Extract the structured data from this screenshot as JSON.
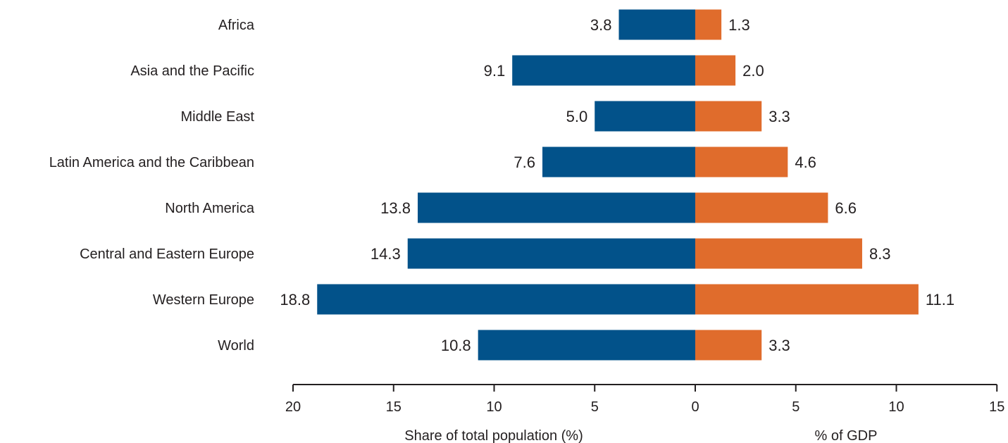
{
  "chart_data": {
    "type": "bar",
    "orientation": "horizontal",
    "layout": "butterfly",
    "categories": [
      "Africa",
      "Asia and the Pacific",
      "Middle East",
      "Latin America and the Caribbean",
      "North America",
      "Central and Eastern Europe",
      "Western Europe",
      "World"
    ],
    "series": [
      {
        "side": "left",
        "color": "#02528a",
        "values": [
          3.8,
          9.1,
          5.0,
          7.6,
          13.8,
          14.3,
          18.8,
          10.8
        ],
        "value_labels": [
          "3.8",
          "9.1",
          "5.0",
          "7.6",
          "13.8",
          "14.3",
          "18.8",
          "10.8"
        ]
      },
      {
        "side": "right",
        "color": "#e06c2c",
        "values": [
          1.3,
          2.0,
          3.3,
          4.6,
          6.6,
          8.3,
          11.1,
          3.3
        ],
        "value_labels": [
          "1.3",
          "2.0",
          "3.3",
          "4.6",
          "6.6",
          "8.3",
          "11.1",
          "3.3"
        ]
      }
    ],
    "left_axis": {
      "label": "Share of total population (%)",
      "range": [
        20,
        0
      ],
      "ticks": [
        20,
        15,
        10,
        5,
        0
      ],
      "tick_labels": [
        "20",
        "15",
        "10",
        "5",
        "0"
      ]
    },
    "right_axis": {
      "label": "% of GDP",
      "range": [
        0,
        15
      ],
      "ticks": [
        5,
        10,
        15
      ],
      "tick_labels": [
        "5",
        "10",
        "15"
      ]
    },
    "grid": false,
    "legend": "none"
  }
}
